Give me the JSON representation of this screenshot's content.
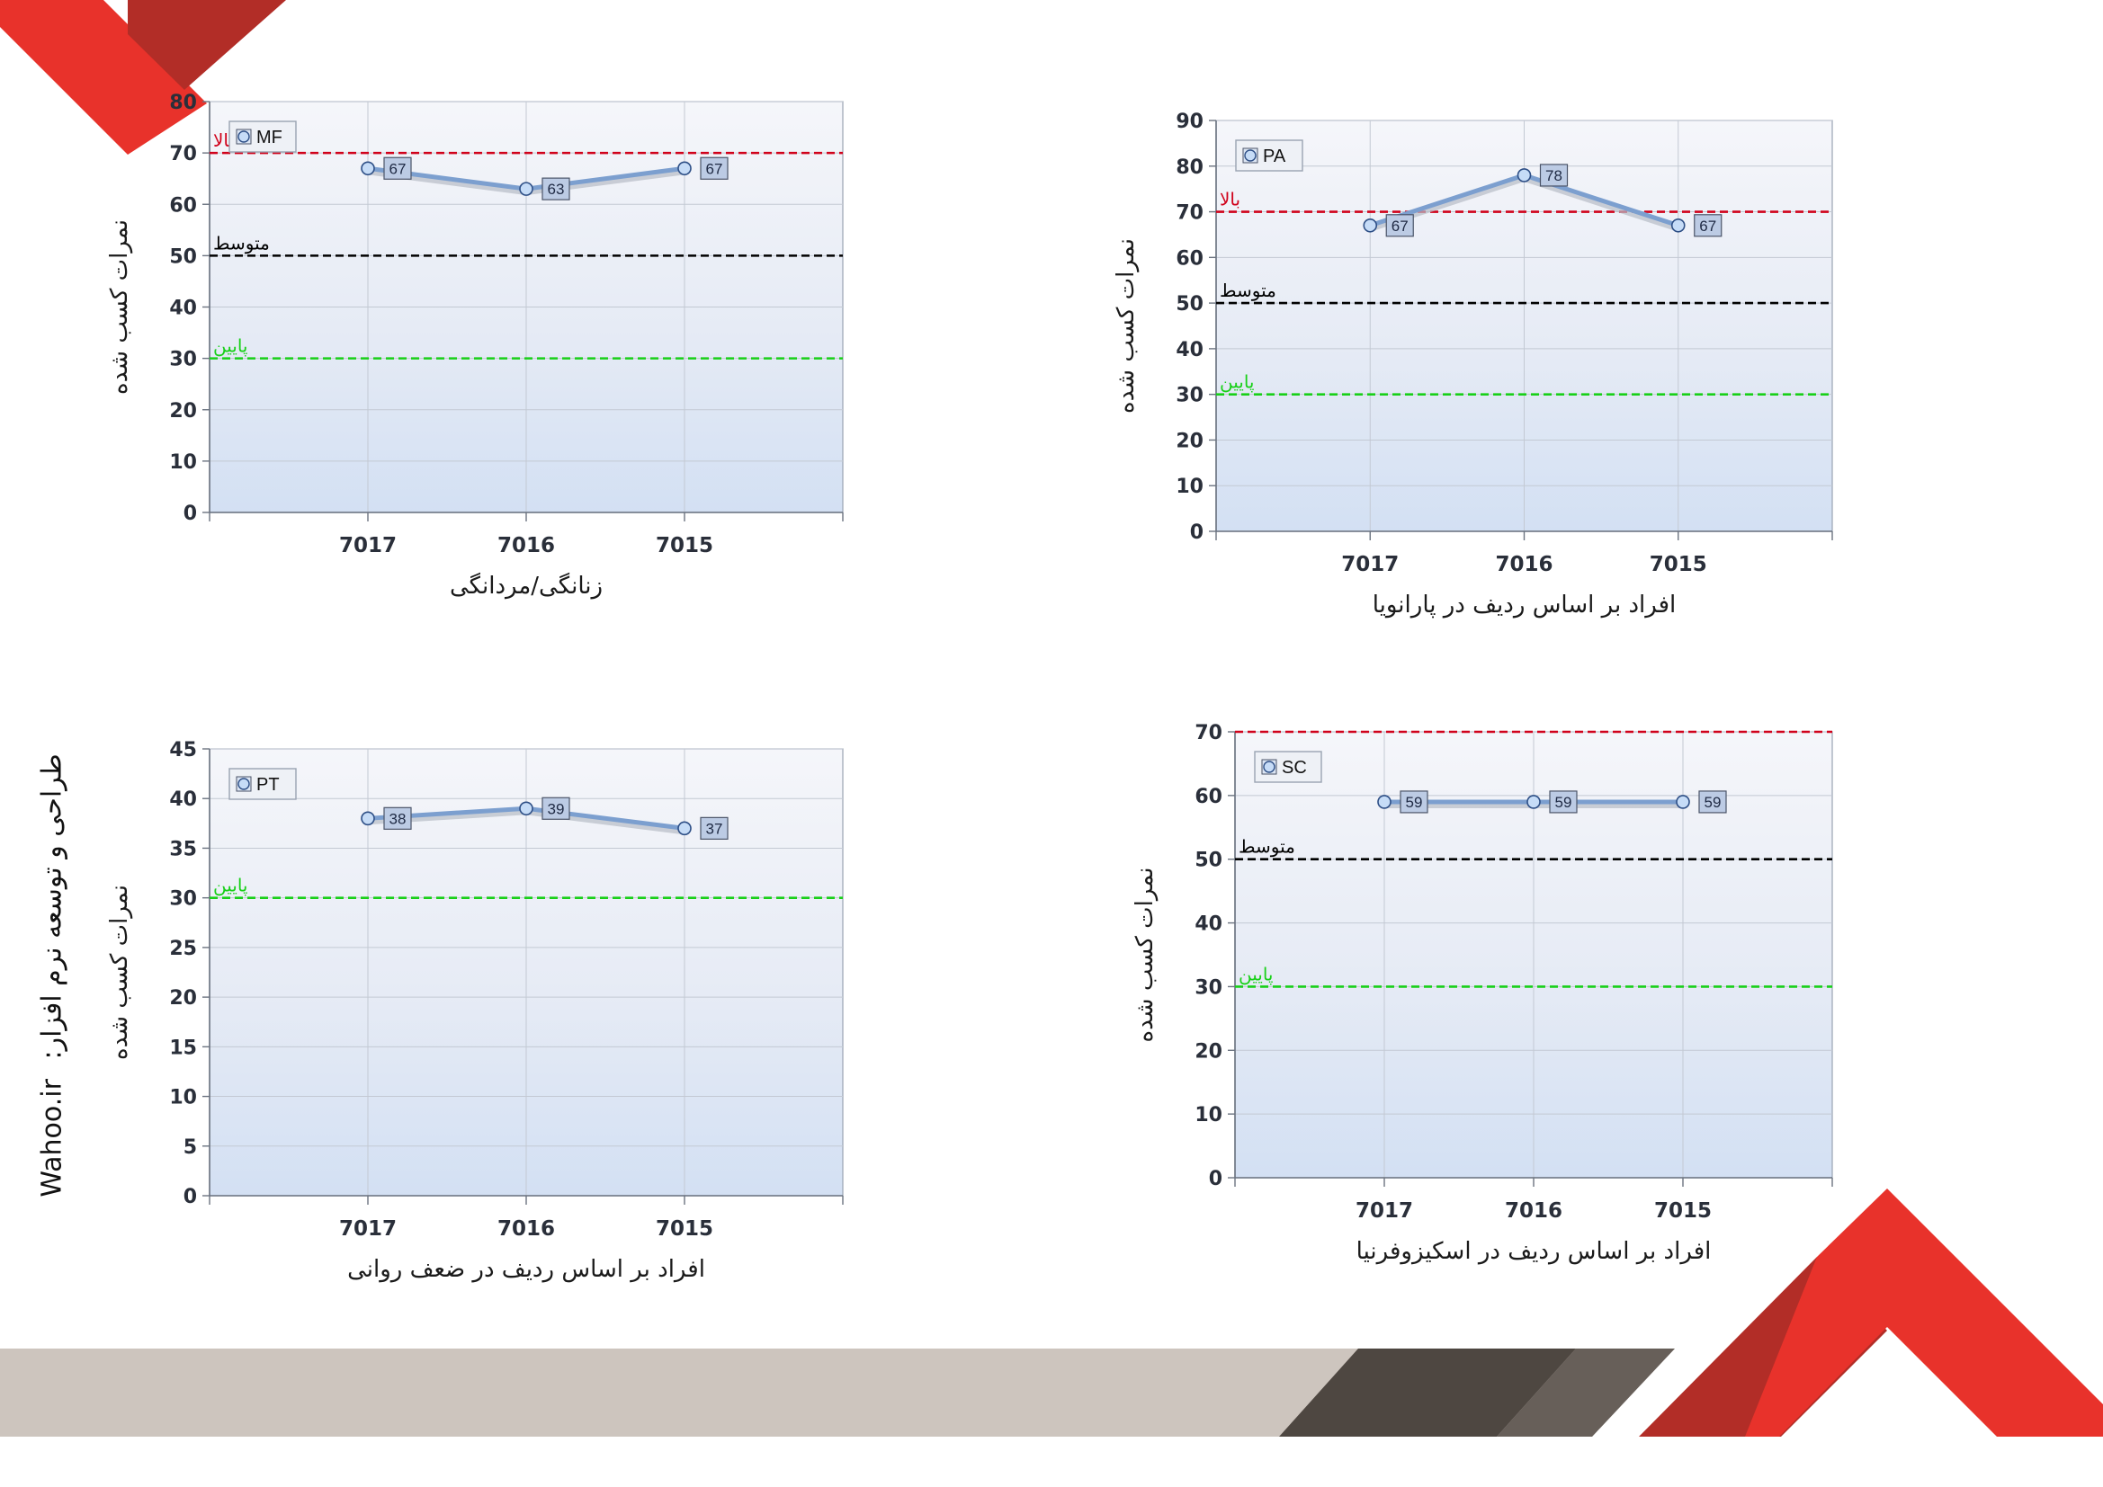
{
  "page": {
    "sidebar_label": "طراحی و توسعه نرم افزار:",
    "sidebar_site": "Wahoo.ir"
  },
  "colors": {
    "red_band": "#e8322b",
    "dark_red_band": "#b22d27",
    "grey_band": "#cdc5be",
    "dark_grey_band": "#4e4741",
    "mid_grey_band": "#675f59",
    "series_line": "#7c9fcf",
    "high_line": "#d0021b",
    "avg_line": "#000000",
    "low_line": "#18d018"
  },
  "chart_data": [
    {
      "type": "line",
      "id": "mf",
      "legend": "MF",
      "categories": [
        "7017",
        "7016",
        "7015"
      ],
      "values": [
        67,
        63,
        67
      ],
      "xlabel": "زنانگی/مردانگی",
      "ylabel": "نمرات کسب شده",
      "ylim": [
        0,
        80
      ],
      "yticks": [
        0,
        10,
        20,
        30,
        40,
        50,
        60,
        70,
        80
      ],
      "reference_lines": [
        {
          "label": "بالا",
          "value": 70,
          "color": "#d0021b"
        },
        {
          "label": "متوسط",
          "value": 50,
          "color": "#000000"
        },
        {
          "label": "پایین",
          "value": 30,
          "color": "#18d018"
        }
      ],
      "legend_position": "top-left",
      "grid": true
    },
    {
      "type": "line",
      "id": "pa",
      "legend": "PA",
      "categories": [
        "7017",
        "7016",
        "7015"
      ],
      "values": [
        67,
        78,
        67
      ],
      "xlabel": "افراد بر اساس ردیف در پارانویا",
      "ylabel": "نمرات کسب شده",
      "ylim": [
        0,
        90
      ],
      "yticks": [
        0,
        10,
        20,
        30,
        40,
        50,
        60,
        70,
        80,
        90
      ],
      "reference_lines": [
        {
          "label": "بالا",
          "value": 70,
          "color": "#d0021b"
        },
        {
          "label": "متوسط",
          "value": 50,
          "color": "#000000"
        },
        {
          "label": "پایین",
          "value": 30,
          "color": "#18d018"
        }
      ],
      "legend_position": "top-left",
      "grid": true
    },
    {
      "type": "line",
      "id": "pt",
      "legend": "PT",
      "categories": [
        "7017",
        "7016",
        "7015"
      ],
      "values": [
        38,
        39,
        37
      ],
      "xlabel": "افراد بر اساس ردیف در ضعف روانی",
      "ylabel": "نمرات کسب شده",
      "ylim": [
        0,
        45
      ],
      "yticks": [
        0,
        5,
        10,
        15,
        20,
        25,
        30,
        35,
        40,
        45
      ],
      "reference_lines": [
        {
          "label": "پایین",
          "value": 30,
          "color": "#18d018"
        }
      ],
      "legend_position": "top-left",
      "grid": true
    },
    {
      "type": "line",
      "id": "sc",
      "legend": "SC",
      "categories": [
        "7017",
        "7016",
        "7015"
      ],
      "values": [
        59,
        59,
        59
      ],
      "xlabel": "افراد بر اساس ردیف در اسکیزوفرنیا",
      "ylabel": "نمرات کسب شده",
      "ylim": [
        0,
        70
      ],
      "yticks": [
        0,
        10,
        20,
        30,
        40,
        50,
        60,
        70
      ],
      "reference_lines": [
        {
          "label": "",
          "value": 70,
          "color": "#d0021b"
        },
        {
          "label": "متوسط",
          "value": 50,
          "color": "#000000"
        },
        {
          "label": "پایین",
          "value": 30,
          "color": "#18d018"
        }
      ],
      "legend_position": "top-left",
      "grid": true
    }
  ]
}
